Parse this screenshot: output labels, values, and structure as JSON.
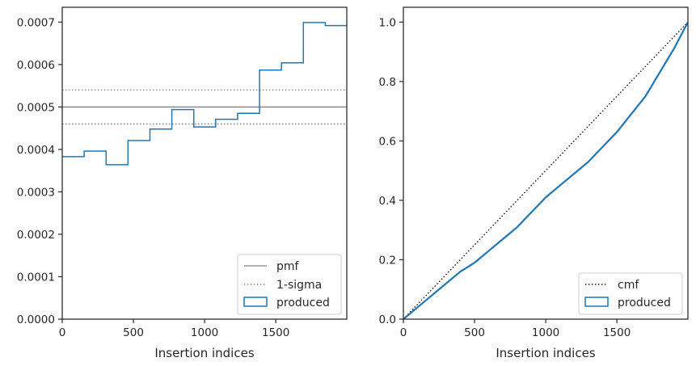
{
  "chart_data": [
    {
      "type": "step",
      "xlabel": "Insertion indices",
      "ylabel": "",
      "xlim": [
        0,
        1999
      ],
      "ylim": [
        0,
        0.000735
      ],
      "xticks": [
        0,
        500,
        1000,
        1500
      ],
      "yticks": [
        0,
        0.0001,
        0.0002,
        0.0003,
        0.0004,
        0.0005,
        0.0006,
        0.0007
      ],
      "ytick_labels": [
        "0.0000",
        "0.0001",
        "0.0002",
        "0.0003",
        "0.0004",
        "0.0005",
        "0.0006",
        "0.0007"
      ],
      "xtick_labels": [
        "0",
        "500",
        "1000",
        "1500"
      ],
      "legend_position": "lower-right",
      "pmf": {
        "name": "pmf",
        "value": 0.0005,
        "color": "#808080"
      },
      "sigma": {
        "name": "1-sigma",
        "values": [
          0.00054,
          0.00046
        ],
        "color": "#808080"
      },
      "histogram": {
        "name": "produced",
        "color": "#1f77b4",
        "bin_edges": [
          0,
          154,
          308,
          462,
          616,
          770,
          924,
          1078,
          1232,
          1386,
          1540,
          1694,
          1848,
          1999
        ],
        "values": [
          0.000383,
          0.000396,
          0.000364,
          0.000421,
          0.000448,
          0.000494,
          0.000453,
          0.000471,
          0.000485,
          0.000587,
          0.000604,
          0.000699,
          0.000692
        ]
      }
    },
    {
      "type": "line",
      "xlabel": "Insertion indices",
      "ylabel": "",
      "xlim": [
        0,
        1999
      ],
      "ylim": [
        0,
        1.05
      ],
      "xticks": [
        0,
        500,
        1000,
        1500
      ],
      "yticks": [
        0.0,
        0.2,
        0.4,
        0.6,
        0.8,
        1.0
      ],
      "ytick_labels": [
        "0.0",
        "0.2",
        "0.4",
        "0.6",
        "0.8",
        "1.0"
      ],
      "xtick_labels": [
        "0",
        "500",
        "1000",
        "1500"
      ],
      "legend_position": "lower-right",
      "cmf": {
        "name": "cmf",
        "x": [
          0,
          1999
        ],
        "y": [
          0,
          1.0
        ],
        "color": "#000000"
      },
      "produced": {
        "name": "produced",
        "color": "#1f77b4",
        "x": [
          0,
          100,
          200,
          300,
          400,
          500,
          600,
          700,
          800,
          900,
          1000,
          1100,
          1200,
          1300,
          1400,
          1500,
          1600,
          1700,
          1800,
          1900,
          1999
        ],
        "y": [
          0,
          0.04,
          0.08,
          0.12,
          0.16,
          0.19,
          0.23,
          0.27,
          0.31,
          0.36,
          0.41,
          0.45,
          0.49,
          0.53,
          0.58,
          0.63,
          0.69,
          0.75,
          0.83,
          0.91,
          1.0
        ]
      }
    }
  ]
}
